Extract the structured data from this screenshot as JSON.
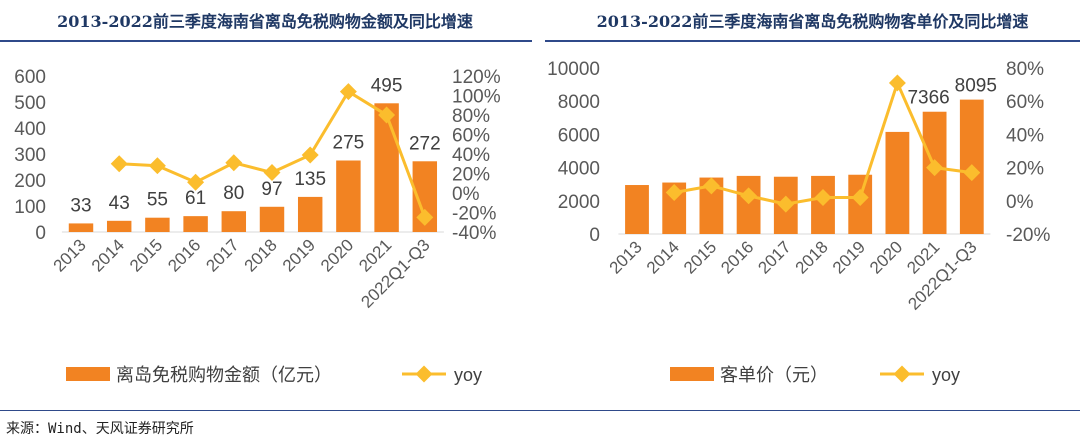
{
  "colors": {
    "bar": "#f28322",
    "line": "#fbbd2d",
    "title": "#1f3864",
    "axis": "#595959"
  },
  "footer": "来源：Wind、天风证券研究所",
  "chart_data": [
    {
      "type": "bar+line",
      "title": "2013-2022前三季度海南省离岛免税购物金额及同比增速",
      "categories": [
        "2013",
        "2014",
        "2015",
        "2016",
        "2017",
        "2018",
        "2019",
        "2020",
        "2021",
        "2022Q1-Q3"
      ],
      "series": [
        {
          "name": "离岛免税购物金额（亿元）",
          "type": "bar",
          "values": [
            33,
            43,
            55,
            61,
            80,
            97,
            135,
            275,
            495,
            272
          ],
          "labels": [
            "33",
            "43",
            "55",
            "61",
            "80",
            "97",
            "135",
            "275",
            "495",
            "272"
          ]
        },
        {
          "name": "yoy",
          "type": "line",
          "axis": "right",
          "values": [
            null,
            30,
            28,
            11,
            31,
            21,
            39,
            104,
            80,
            -25
          ]
        }
      ],
      "ylim": [
        0,
        600
      ],
      "yticks": [
        "0",
        "100",
        "200",
        "300",
        "400",
        "500",
        "600"
      ],
      "y2lim": [
        -40,
        120
      ],
      "y2ticks": [
        "-40%",
        "-20%",
        "0%",
        "20%",
        "40%",
        "60%",
        "80%",
        "100%",
        "120%"
      ],
      "legend": "bottom"
    },
    {
      "type": "bar+line",
      "title": "2013-2022前三季度海南省离岛免税购物客单价及同比增速",
      "categories": [
        "2013",
        "2014",
        "2015",
        "2016",
        "2017",
        "2018",
        "2019",
        "2020",
        "2021",
        "2022Q1-Q3"
      ],
      "series": [
        {
          "name": "客单价（元）",
          "type": "bar",
          "values": [
            2950,
            3100,
            3400,
            3500,
            3450,
            3500,
            3570,
            6150,
            7366,
            8095
          ],
          "labels": [
            "",
            "",
            "",
            "",
            "",
            "",
            "",
            "",
            "7366",
            "8095"
          ]
        },
        {
          "name": "yoy",
          "type": "line",
          "axis": "right",
          "values": [
            null,
            5,
            9,
            3,
            -2,
            2,
            2,
            71,
            20,
            17
          ]
        }
      ],
      "ylim": [
        0,
        10000
      ],
      "yticks": [
        "0",
        "2000",
        "4000",
        "6000",
        "8000",
        "10000"
      ],
      "y2lim": [
        -20,
        80
      ],
      "y2ticks": [
        "-20%",
        "0%",
        "20%",
        "40%",
        "60%",
        "80%"
      ],
      "legend": "bottom"
    }
  ]
}
